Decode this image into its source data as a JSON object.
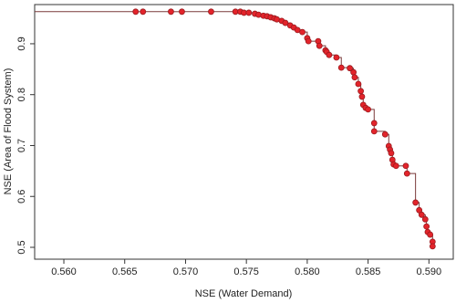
{
  "chart_data": {
    "type": "scatter",
    "x_label": "NSE (Water Demand)",
    "y_label": "NSE (Area of Flood System)",
    "xlim": [
      0.5576,
      0.592
    ],
    "ylim": [
      0.4767,
      0.977
    ],
    "xticks": [
      {
        "value": 0.56,
        "label": "0.560"
      },
      {
        "value": 0.565,
        "label": "0.565"
      },
      {
        "value": 0.57,
        "label": "0.570"
      },
      {
        "value": 0.575,
        "label": "0.575"
      },
      {
        "value": 0.58,
        "label": "0.580"
      },
      {
        "value": 0.585,
        "label": "0.585"
      },
      {
        "value": 0.59,
        "label": "0.590"
      }
    ],
    "yticks": [
      0.5,
      0.6,
      0.7,
      0.8,
      0.9
    ],
    "step_line": true,
    "series": [
      {
        "color": "#e3242b",
        "x": [
          0.5659,
          0.5665,
          0.5688,
          0.5697,
          0.5721,
          0.5741,
          0.5745,
          0.5748,
          0.5752,
          0.5757,
          0.576,
          0.5764,
          0.5767,
          0.577,
          0.5773,
          0.5775,
          0.5779,
          0.5782,
          0.5786,
          0.5789,
          0.5792,
          0.5796,
          0.58,
          0.5801,
          0.5809,
          0.581,
          0.5815,
          0.5816,
          0.5818,
          0.5824,
          0.5828,
          0.5835,
          0.5838,
          0.5839,
          0.5842,
          0.5844,
          0.5845,
          0.5846,
          0.5848,
          0.585,
          0.5855,
          0.5855,
          0.5864,
          0.5867,
          0.5868,
          0.5869,
          0.587,
          0.5871,
          0.5873,
          0.5881,
          0.5882,
          0.5889,
          0.5892,
          0.5894,
          0.5897,
          0.5898,
          0.5899,
          0.5901,
          0.5903,
          0.5903
        ],
        "values": [
          0.963,
          0.963,
          0.963,
          0.963,
          0.963,
          0.963,
          0.963,
          0.961,
          0.961,
          0.959,
          0.957,
          0.955,
          0.954,
          0.952,
          0.95,
          0.948,
          0.945,
          0.941,
          0.936,
          0.932,
          0.927,
          0.923,
          0.911,
          0.905,
          0.905,
          0.896,
          0.887,
          0.884,
          0.878,
          0.873,
          0.853,
          0.852,
          0.844,
          0.834,
          0.821,
          0.807,
          0.796,
          0.78,
          0.774,
          0.771,
          0.744,
          0.728,
          0.722,
          0.699,
          0.692,
          0.685,
          0.672,
          0.663,
          0.66,
          0.66,
          0.645,
          0.588,
          0.573,
          0.564,
          0.555,
          0.541,
          0.53,
          0.525,
          0.511,
          0.502
        ]
      }
    ]
  }
}
